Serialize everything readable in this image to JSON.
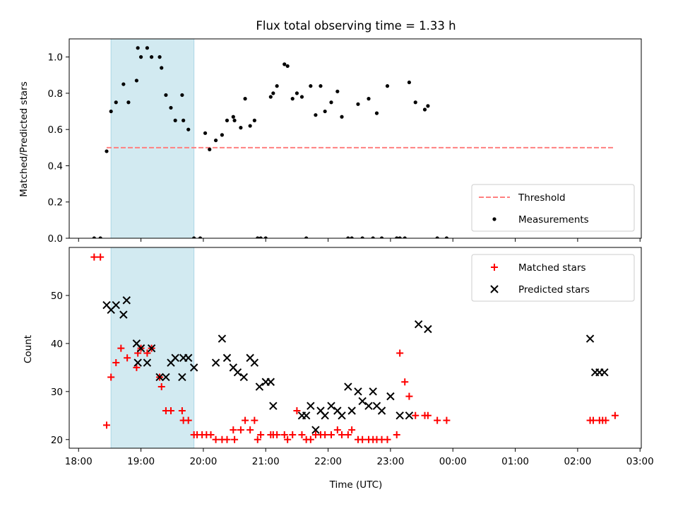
{
  "chart_data": [
    {
      "type": "scatter",
      "title": "Flux total observing time = 1.33 h",
      "ylabel": "Matched/Predicted stars",
      "xlabel": "",
      "x_unit": "hours since 18:00 UTC",
      "xlim": [
        -0.15,
        9.02
      ],
      "ylim": [
        0.0,
        1.1
      ],
      "yticks": [
        0.0,
        0.2,
        0.4,
        0.6,
        0.8,
        1.0
      ],
      "ytick_labels": [
        "0.0",
        "0.2",
        "0.4",
        "0.6",
        "0.8",
        "1.0"
      ],
      "shaded_span": [
        0.52,
        1.85
      ],
      "shaded_color": "#add8e6",
      "legend_position": "lower-right",
      "series": [
        {
          "name": "Threshold",
          "style": "dashed-line",
          "color": "#ff8080",
          "x": [
            0.45,
            8.6
          ],
          "y": [
            0.5,
            0.5
          ]
        },
        {
          "name": "Measurements",
          "style": "dot",
          "color": "#000000",
          "x": [
            0.25,
            0.35,
            0.45,
            0.52,
            0.6,
            0.72,
            0.8,
            0.93,
            0.95,
            1.0,
            1.1,
            1.17,
            1.3,
            1.33,
            1.4,
            1.48,
            1.55,
            1.66,
            1.68,
            1.76,
            1.85,
            1.95,
            2.03,
            2.1,
            2.2,
            2.3,
            2.38,
            2.48,
            2.5,
            2.6,
            2.67,
            2.75,
            2.82,
            2.87,
            2.92,
            3.0,
            3.08,
            3.12,
            3.18,
            3.3,
            3.35,
            3.43,
            3.5,
            3.58,
            3.65,
            3.72,
            3.8,
            3.88,
            3.95,
            4.05,
            4.15,
            4.22,
            4.32,
            4.38,
            4.48,
            4.55,
            4.65,
            4.72,
            4.78,
            4.86,
            4.95,
            5.1,
            5.15,
            5.23,
            5.3,
            5.4,
            5.55,
            5.6,
            5.75,
            5.9
          ],
          "y": [
            0.0,
            0.0,
            0.48,
            0.7,
            0.75,
            0.85,
            0.75,
            0.87,
            1.05,
            1.0,
            1.05,
            1.0,
            1.0,
            0.94,
            0.79,
            0.72,
            0.65,
            0.79,
            0.65,
            0.6,
            0.0,
            0.0,
            0.58,
            0.49,
            0.54,
            0.57,
            0.65,
            0.67,
            0.65,
            0.61,
            0.77,
            0.62,
            0.65,
            0.0,
            0.0,
            0.0,
            0.78,
            0.8,
            0.84,
            0.96,
            0.95,
            0.77,
            0.8,
            0.78,
            0.0,
            0.84,
            0.68,
            0.84,
            0.7,
            0.75,
            0.81,
            0.67,
            0.0,
            0.0,
            0.74,
            0.0,
            0.77,
            0.0,
            0.69,
            0.0,
            0.84,
            0.0,
            0.0,
            0.0,
            0.86,
            0.75,
            0.71,
            0.73,
            0.0,
            0.0
          ]
        }
      ]
    },
    {
      "type": "scatter",
      "title": "",
      "ylabel": "Count",
      "xlabel": "Time (UTC)",
      "x_unit": "hours since 18:00 UTC",
      "xlim": [
        -0.15,
        9.02
      ],
      "ylim": [
        18.2,
        60.0
      ],
      "yticks": [
        20,
        30,
        40,
        50
      ],
      "ytick_labels": [
        "20",
        "30",
        "40",
        "50"
      ],
      "xticks": [
        0,
        1,
        2,
        3,
        4,
        5,
        6,
        7,
        8,
        9
      ],
      "xtick_labels": [
        "18:00",
        "19:00",
        "20:00",
        "21:00",
        "22:00",
        "23:00",
        "00:00",
        "01:00",
        "02:00",
        "03:00"
      ],
      "shaded_span": [
        0.52,
        1.85
      ],
      "shaded_color": "#add8e6",
      "legend_position": "top-right",
      "series": [
        {
          "name": "Matched stars",
          "style": "plus",
          "color": "#ff0000",
          "x": [
            0.25,
            0.35,
            0.45,
            0.52,
            0.6,
            0.68,
            0.78,
            0.93,
            0.95,
            1.0,
            1.1,
            1.17,
            1.3,
            1.33,
            1.4,
            1.48,
            1.66,
            1.68,
            1.76,
            1.85,
            1.9,
            1.98,
            2.05,
            2.12,
            2.2,
            2.3,
            2.38,
            2.48,
            2.5,
            2.6,
            2.67,
            2.75,
            2.82,
            2.87,
            2.92,
            3.08,
            3.12,
            3.18,
            3.3,
            3.35,
            3.43,
            3.5,
            3.58,
            3.65,
            3.72,
            3.8,
            3.88,
            3.95,
            4.05,
            4.15,
            4.22,
            4.32,
            4.38,
            4.48,
            4.55,
            4.65,
            4.72,
            4.78,
            4.86,
            4.95,
            5.1,
            5.15,
            5.23,
            5.3,
            5.4,
            5.55,
            5.6,
            5.75,
            5.9,
            8.2,
            8.25,
            8.35,
            8.4,
            8.45,
            8.6
          ],
          "y": [
            58,
            58,
            23,
            33,
            36,
            39,
            37,
            35,
            38,
            39,
            38,
            39,
            33,
            31,
            26,
            26,
            26,
            24,
            24,
            21,
            21,
            21,
            21,
            21,
            20,
            20,
            20,
            22,
            20,
            22,
            24,
            22,
            24,
            20,
            21,
            21,
            21,
            21,
            21,
            20,
            21,
            26,
            21,
            20,
            20,
            21,
            21,
            21,
            21,
            22,
            21,
            21,
            22,
            20,
            20,
            20,
            20,
            20,
            20,
            20,
            21,
            38,
            32,
            29,
            25,
            25,
            25,
            24,
            24,
            24,
            24,
            24,
            24,
            24,
            25
          ],
          "note_removed": false
        },
        {
          "name": "Predicted stars",
          "style": "x",
          "color": "#000000",
          "x": [
            0.45,
            0.52,
            0.6,
            0.72,
            0.77,
            0.93,
            0.95,
            1.0,
            1.1,
            1.17,
            1.3,
            1.4,
            1.48,
            1.55,
            1.66,
            1.68,
            1.76,
            1.85,
            2.2,
            2.3,
            2.38,
            2.48,
            2.55,
            2.65,
            2.75,
            2.82,
            2.9,
            3.0,
            3.08,
            3.12,
            3.58,
            3.65,
            3.72,
            3.8,
            3.88,
            3.95,
            4.05,
            4.15,
            4.22,
            4.32,
            4.38,
            4.48,
            4.55,
            4.65,
            4.72,
            4.78,
            4.86,
            5.0,
            5.15,
            5.3,
            5.45,
            5.6,
            8.2,
            8.28,
            8.35,
            8.43
          ],
          "y": [
            48,
            47,
            48,
            46,
            49,
            40,
            36,
            39,
            36,
            39,
            33,
            33,
            36,
            37,
            33,
            37,
            37,
            35,
            36,
            41,
            37,
            35,
            34,
            33,
            37,
            36,
            31,
            32,
            32,
            27,
            25,
            25,
            27,
            22,
            26,
            25,
            27,
            26,
            25,
            31,
            26,
            30,
            28,
            27,
            30,
            27,
            26,
            29,
            25,
            25,
            44,
            43,
            41,
            34,
            34,
            34
          ]
        }
      ]
    }
  ]
}
